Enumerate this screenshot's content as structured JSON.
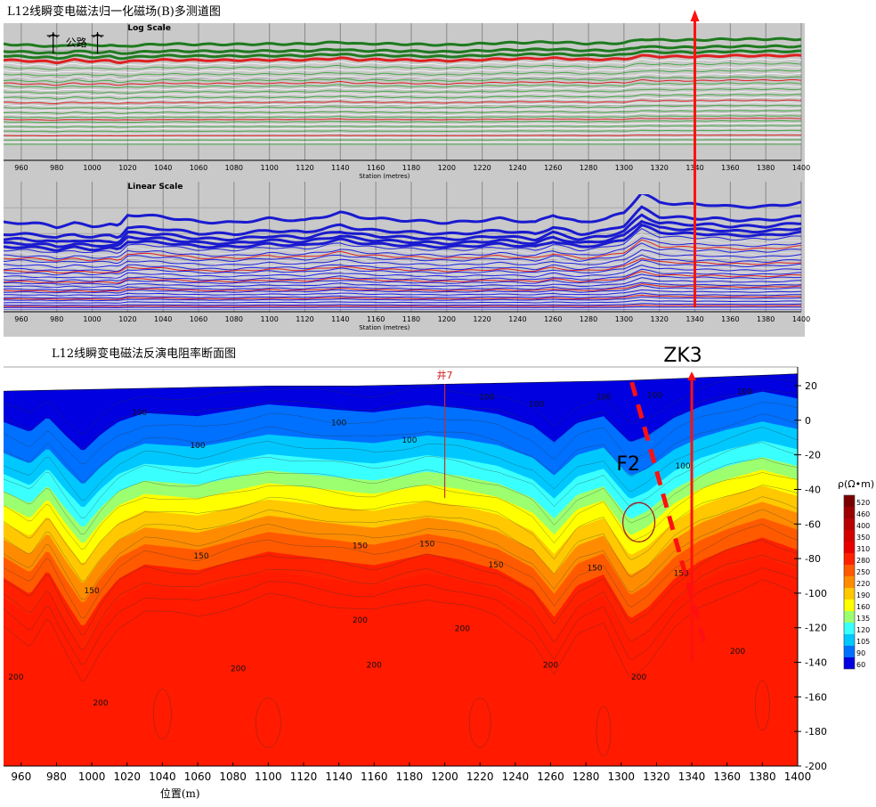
{
  "figure_title_top": "L12线瞬变电磁法归一化磁场(B)多测道图",
  "figure_title_bottom": "L12线瞬变电磁法反演电阻率断面图",
  "road_label": "公路",
  "arrow_label": "ZK3",
  "fault_label": "F2",
  "well_label": "井7",
  "colors": {
    "panel_bg": "#c9c9c9",
    "log_fill": "#2e8b2e",
    "line_green": "#3c9c3c",
    "line_red": "#e02020",
    "line_blue": "#2020e0",
    "arrow": "#ff1010",
    "fault": "#ff1010"
  },
  "chart_data": [
    {
      "type": "line",
      "title": "Log Scale",
      "xlabel": "Station (metres)",
      "xlim": [
        950,
        1400
      ],
      "xticks": [
        960,
        980,
        1000,
        1020,
        1040,
        1060,
        1080,
        1100,
        1120,
        1140,
        1160,
        1180,
        1200,
        1220,
        1240,
        1260,
        1280,
        1300,
        1320,
        1340,
        1360,
        1380,
        1400
      ],
      "profile_x": [
        950,
        960,
        975,
        980,
        990,
        1000,
        1010,
        1015,
        1020,
        1040,
        1060,
        1080,
        1100,
        1120,
        1140,
        1150,
        1160,
        1200,
        1210,
        1230,
        1260,
        1280,
        1300,
        1310,
        1320,
        1340,
        1360,
        1380,
        1400
      ],
      "profile_top": [
        0.3,
        0.25,
        0.2,
        0.15,
        0.3,
        0.22,
        0.25,
        0.15,
        0.2,
        0.3,
        0.28,
        0.28,
        0.3,
        0.3,
        0.4,
        0.3,
        0.32,
        0.25,
        0.28,
        0.35,
        0.4,
        0.32,
        0.35,
        0.55,
        0.5,
        0.5,
        0.55,
        0.55,
        0.55
      ],
      "series_count": 36
    },
    {
      "type": "line",
      "title": "Linear Scale",
      "xlabel": "Station (metres)",
      "xlim": [
        950,
        1400
      ],
      "xticks": [
        960,
        980,
        1000,
        1020,
        1040,
        1060,
        1080,
        1100,
        1120,
        1140,
        1160,
        1180,
        1200,
        1220,
        1240,
        1260,
        1280,
        1300,
        1320,
        1340,
        1360,
        1380,
        1400
      ],
      "profile_x": [
        950,
        960,
        975,
        980,
        990,
        1000,
        1010,
        1015,
        1020,
        1040,
        1060,
        1080,
        1100,
        1120,
        1140,
        1150,
        1160,
        1200,
        1210,
        1230,
        1250,
        1260,
        1275,
        1290,
        1300,
        1310,
        1320,
        1340,
        1350,
        1360,
        1380,
        1400
      ],
      "profile_top": [
        0.2,
        0.2,
        0.15,
        0.1,
        0.18,
        0.12,
        0.15,
        0.1,
        0.4,
        0.35,
        0.22,
        0.2,
        0.3,
        0.25,
        0.45,
        0.35,
        0.3,
        0.2,
        0.22,
        0.3,
        0.2,
        0.4,
        0.2,
        0.3,
        0.45,
        0.95,
        0.7,
        0.65,
        0.65,
        0.6,
        0.6,
        0.7
      ],
      "series_count": 42
    },
    {
      "type": "heatmap",
      "title": "L12线瞬变电磁法反演电阻率断面图",
      "xlabel": "位置(m)",
      "ylabel": "",
      "xlim": [
        950,
        1400
      ],
      "ylim": [
        -200,
        27
      ],
      "xticks": [
        960,
        980,
        1000,
        1020,
        1040,
        1060,
        1080,
        1100,
        1120,
        1140,
        1160,
        1180,
        1200,
        1220,
        1240,
        1260,
        1280,
        1300,
        1320,
        1340,
        1360,
        1380,
        1400
      ],
      "yticks": [
        20,
        0,
        -20,
        -40,
        -60,
        -80,
        -100,
        -120,
        -140,
        -160,
        -180,
        -200
      ],
      "colorbar_label": "ρ(Ω•m)",
      "colorbar_levels": [
        520,
        460,
        400,
        350,
        310,
        280,
        250,
        220,
        190,
        160,
        135,
        120,
        105,
        90,
        60
      ],
      "colorbar_colors": [
        "#7a0000",
        "#9c0000",
        "#b80000",
        "#d40000",
        "#ea0000",
        "#ff2000",
        "#ff5a00",
        "#ff8c00",
        "#ffc800",
        "#ffff00",
        "#9cff70",
        "#3affff",
        "#00c8ff",
        "#0070ff",
        "#0000e0"
      ],
      "surface_x": [
        950,
        1000,
        1050,
        1100,
        1150,
        1200,
        1250,
        1300,
        1350,
        1400
      ],
      "surface_y": [
        17,
        18,
        19,
        20,
        20,
        21,
        22,
        23,
        25,
        27
      ],
      "contour_labels": [
        {
          "text": "100",
          "x": 1027,
          "y": 3
        },
        {
          "text": "100",
          "x": 1060,
          "y": -16
        },
        {
          "text": "100",
          "x": 1140,
          "y": -3
        },
        {
          "text": "100",
          "x": 1180,
          "y": -13
        },
        {
          "text": "100",
          "x": 1224,
          "y": 12
        },
        {
          "text": "100",
          "x": 1252,
          "y": 8
        },
        {
          "text": "100",
          "x": 1290,
          "y": 12
        },
        {
          "text": "100",
          "x": 1319,
          "y": 13
        },
        {
          "text": "100",
          "x": 1335,
          "y": -28
        },
        {
          "text": "100",
          "x": 1370,
          "y": 15
        },
        {
          "text": "150",
          "x": 1062,
          "y": -80
        },
        {
          "text": "150",
          "x": 1000,
          "y": -100
        },
        {
          "text": "150",
          "x": 1152,
          "y": -74
        },
        {
          "text": "150",
          "x": 1190,
          "y": -73
        },
        {
          "text": "150",
          "x": 1229,
          "y": -85
        },
        {
          "text": "150",
          "x": 1285,
          "y": -87
        },
        {
          "text": "150",
          "x": 1334,
          "y": -90
        },
        {
          "text": "200",
          "x": 1152,
          "y": -117
        },
        {
          "text": "200",
          "x": 1210,
          "y": -122
        },
        {
          "text": "200",
          "x": 1083,
          "y": -145
        },
        {
          "text": "200",
          "x": 1160,
          "y": -143
        },
        {
          "text": "200",
          "x": 1260,
          "y": -143
        },
        {
          "text": "200",
          "x": 1310,
          "y": -150
        },
        {
          "text": "200",
          "x": 1366,
          "y": -135
        },
        {
          "text": "200",
          "x": 957,
          "y": -150
        },
        {
          "text": "200",
          "x": 1005,
          "y": -165
        }
      ]
    }
  ]
}
